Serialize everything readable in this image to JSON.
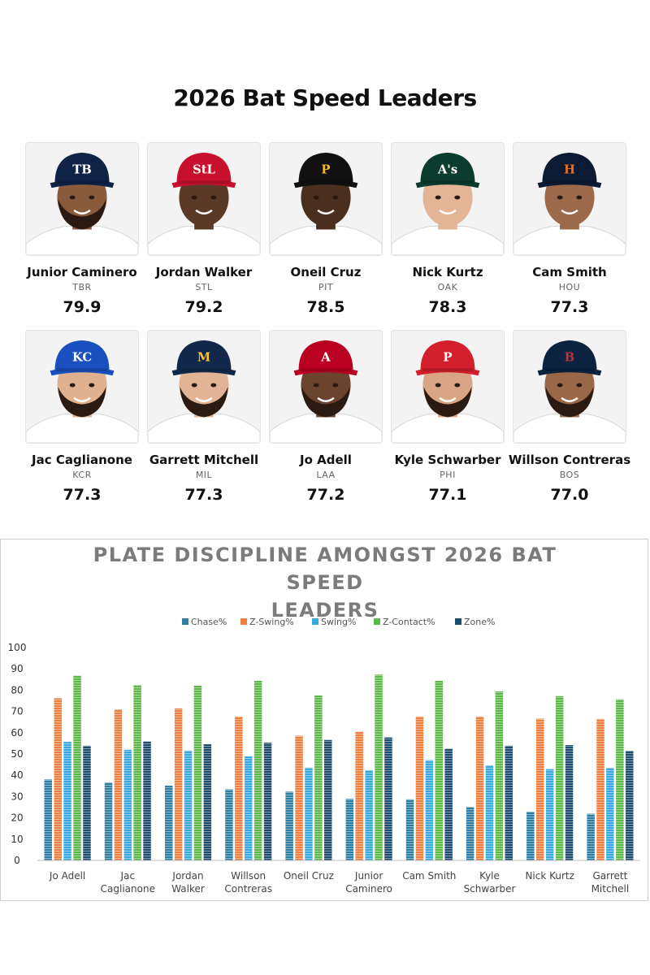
{
  "page_title": "2026 Bat Speed Leaders",
  "players": [
    {
      "name": "Junior Caminero",
      "team": "TBR",
      "value": "79.9",
      "cap_color": "#0f2347",
      "logo": "TB",
      "logo_color": "#ffffff",
      "skin": "#8a5a3c",
      "beard": true,
      "jersey": "#ffffff"
    },
    {
      "name": "Jordan Walker",
      "team": "STL",
      "value": "79.2",
      "cap_color": "#c8102e",
      "logo": "StL",
      "logo_color": "#ffffff",
      "skin": "#5a3a26",
      "beard": false,
      "jersey": "#ffffff"
    },
    {
      "name": "Oneil Cruz",
      "team": "PIT",
      "value": "78.5",
      "cap_color": "#111111",
      "logo": "P",
      "logo_color": "#fdb827",
      "skin": "#4a2e1e",
      "beard": false,
      "jersey": "#ffffff"
    },
    {
      "name": "Nick Kurtz",
      "team": "OAK",
      "value": "78.3",
      "cap_color": "#0b3d2e",
      "logo": "A's",
      "logo_color": "#ffffff",
      "skin": "#e3b596",
      "beard": false,
      "jersey": "#ffffff"
    },
    {
      "name": "Cam Smith",
      "team": "HOU",
      "value": "77.3",
      "cap_color": "#0c1b33",
      "logo": "H",
      "logo_color": "#eb6e1f",
      "skin": "#9c6a4a",
      "beard": false,
      "jersey": "#ffffff"
    },
    {
      "name": "Jac Caglianone",
      "team": "KCR",
      "value": "77.3",
      "cap_color": "#1a4fbf",
      "logo": "KC",
      "logo_color": "#ffffff",
      "skin": "#e0b08f",
      "beard": true,
      "jersey": "#ffffff"
    },
    {
      "name": "Garrett Mitchell",
      "team": "MIL",
      "value": "77.3",
      "cap_color": "#12284b",
      "logo": "M",
      "logo_color": "#ffc52f",
      "skin": "#e2b394",
      "beard": true,
      "jersey": "#ffffff"
    },
    {
      "name": "Jo Adell",
      "team": "LAA",
      "value": "77.2",
      "cap_color": "#ba0021",
      "logo": "A",
      "logo_color": "#ffffff",
      "skin": "#6b4430",
      "beard": true,
      "jersey": "#ffffff"
    },
    {
      "name": "Kyle Schwarber",
      "team": "PHI",
      "value": "77.1",
      "cap_color": "#d21f2b",
      "logo": "P",
      "logo_color": "#ffffff",
      "skin": "#d9a585",
      "beard": true,
      "jersey": "#ffffff"
    },
    {
      "name": "Willson Contreras",
      "team": "BOS",
      "value": "77.0",
      "cap_color": "#0c2340",
      "logo": "B",
      "logo_color": "#bd3039",
      "skin": "#9a6848",
      "beard": true,
      "jersey": "#ffffff"
    }
  ],
  "chart_title_line1": "PLATE DISCIPLINE AMONGST 2026 BAT SPEED",
  "chart_title_line2": "LEADERS",
  "chart_data": {
    "type": "bar",
    "title": "PLATE DISCIPLINE AMONGST 2026 BAT SPEED LEADERS",
    "xlabel": "",
    "ylabel": "",
    "ylim": [
      0,
      100
    ],
    "yticks": [
      0,
      10,
      20,
      30,
      40,
      50,
      60,
      70,
      80,
      90,
      100
    ],
    "grid": false,
    "legend_position": "top",
    "categories": [
      "Jo Adell",
      "Jac Caglianone",
      "Jordan Walker",
      "Willson Contreras",
      "Oneil Cruz",
      "Junior Caminero",
      "Cam Smith",
      "Kyle Schwarber",
      "Nick Kurtz",
      "Garrett Mitchell"
    ],
    "category_lines": [
      [
        "Jo Adell"
      ],
      [
        "Jac",
        "Caglianone"
      ],
      [
        "Jordan",
        "Walker"
      ],
      [
        "Willson",
        "Contreras"
      ],
      [
        "Oneil Cruz"
      ],
      [
        "Junior",
        "Caminero"
      ],
      [
        "Cam Smith"
      ],
      [
        "Kyle",
        "Schwarber"
      ],
      [
        "Nick Kurtz"
      ],
      [
        "Garrett",
        "Mitchell"
      ]
    ],
    "series": [
      {
        "name": "Chase%",
        "color": "#2e7ea3",
        "values": [
          38.0,
          36.6,
          35.1,
          33.4,
          32.3,
          28.9,
          28.7,
          25.1,
          22.9,
          21.9
        ]
      },
      {
        "name": "Z-Swing%",
        "color": "#ef7f3f",
        "values": [
          76.2,
          71.0,
          71.4,
          67.6,
          58.6,
          60.5,
          67.6,
          67.6,
          66.6,
          66.5
        ]
      },
      {
        "name": "Swing%",
        "color": "#38a9de",
        "values": [
          55.7,
          52.0,
          51.6,
          48.9,
          43.6,
          42.4,
          47.1,
          44.7,
          42.9,
          43.5
        ]
      },
      {
        "name": "Z-Contact%",
        "color": "#5cb948",
        "values": [
          86.8,
          82.4,
          82.1,
          84.4,
          77.5,
          87.3,
          84.4,
          79.4,
          77.2,
          75.7
        ]
      },
      {
        "name": "Zone%",
        "color": "#1e4c6e",
        "values": [
          53.9,
          55.9,
          54.6,
          55.3,
          56.6,
          57.8,
          52.5,
          53.9,
          54.2,
          51.5
        ]
      }
    ]
  }
}
